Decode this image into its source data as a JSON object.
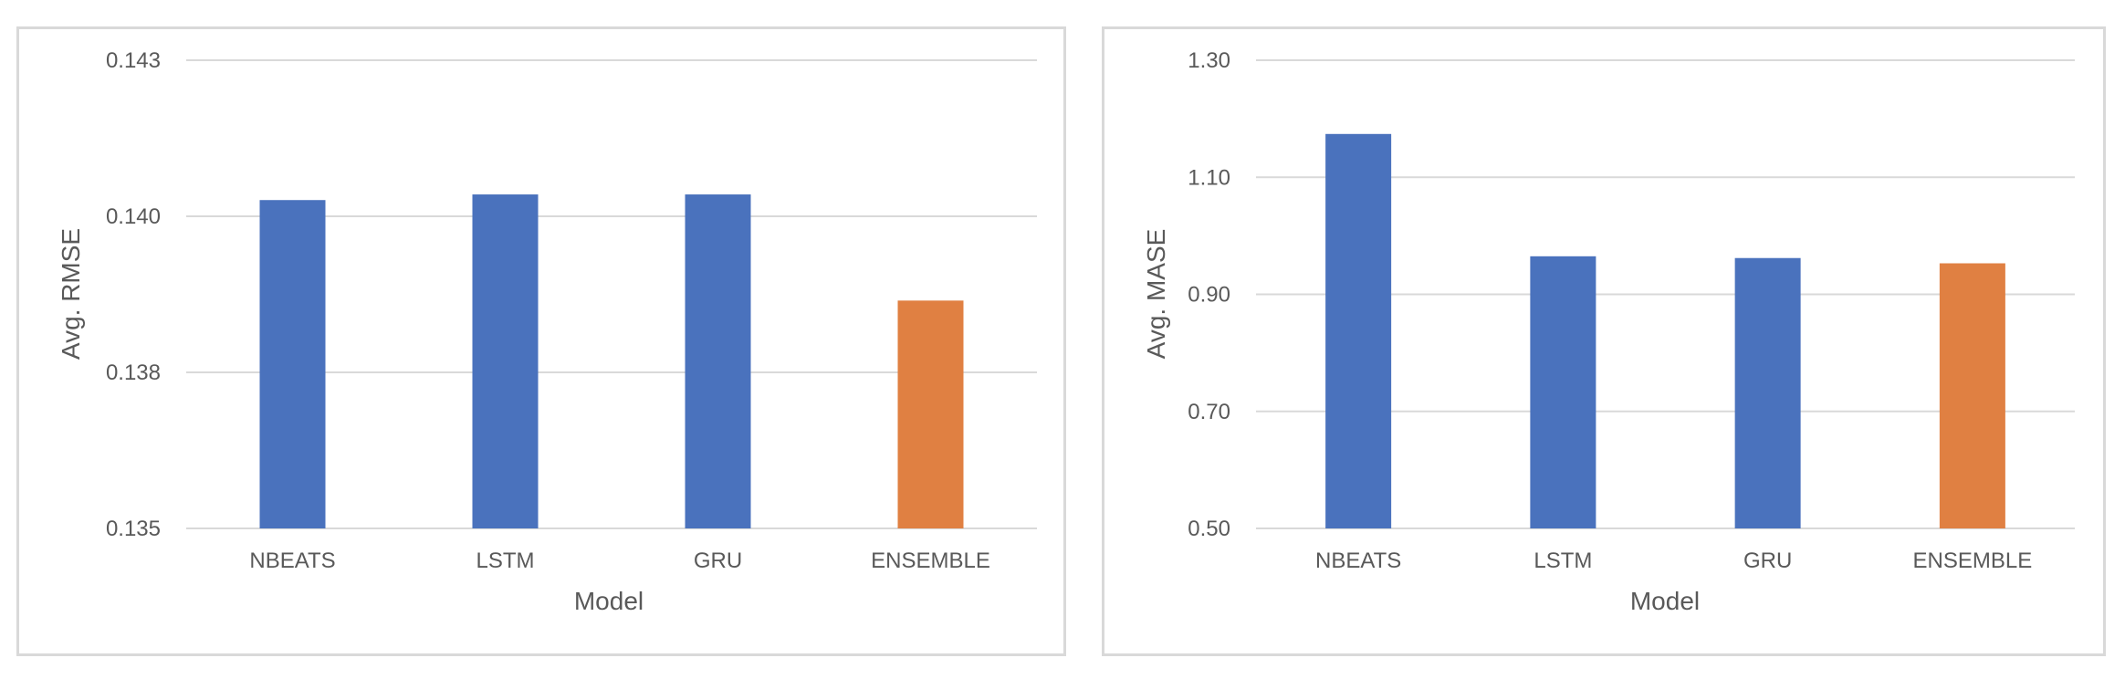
{
  "chart_data": [
    {
      "type": "bar",
      "title": "",
      "xlabel": "Model",
      "ylabel": "Avg. RMSE",
      "categories": [
        "NBEATS",
        "LSTM",
        "GRU",
        "ENSEMBLE"
      ],
      "values": [
        0.14026,
        0.14035,
        0.14035,
        0.13865
      ],
      "bar_colors": [
        "#4a72bd",
        "#4a72bd",
        "#4a72bd",
        "#e08042"
      ],
      "ylim": [
        0.135,
        0.1425
      ],
      "yticks": [
        0.135,
        0.1375,
        0.14,
        0.1425
      ],
      "ytick_labels": [
        "0.135",
        "0.138",
        "0.140",
        "0.143"
      ],
      "grid": true,
      "legend": "none"
    },
    {
      "type": "bar",
      "title": "",
      "xlabel": "Model",
      "ylabel": "Avg. MASE",
      "categories": [
        "NBEATS",
        "LSTM",
        "GRU",
        "ENSEMBLE"
      ],
      "values": [
        1.174,
        0.965,
        0.962,
        0.953
      ],
      "bar_colors": [
        "#4a72bd",
        "#4a72bd",
        "#4a72bd",
        "#e08042"
      ],
      "ylim": [
        0.5,
        1.3
      ],
      "yticks": [
        0.5,
        0.7,
        0.9,
        1.1,
        1.3
      ],
      "ytick_labels": [
        "0.50",
        "0.70",
        "0.90",
        "1.10",
        "1.30"
      ],
      "grid": true,
      "legend": "none"
    }
  ]
}
